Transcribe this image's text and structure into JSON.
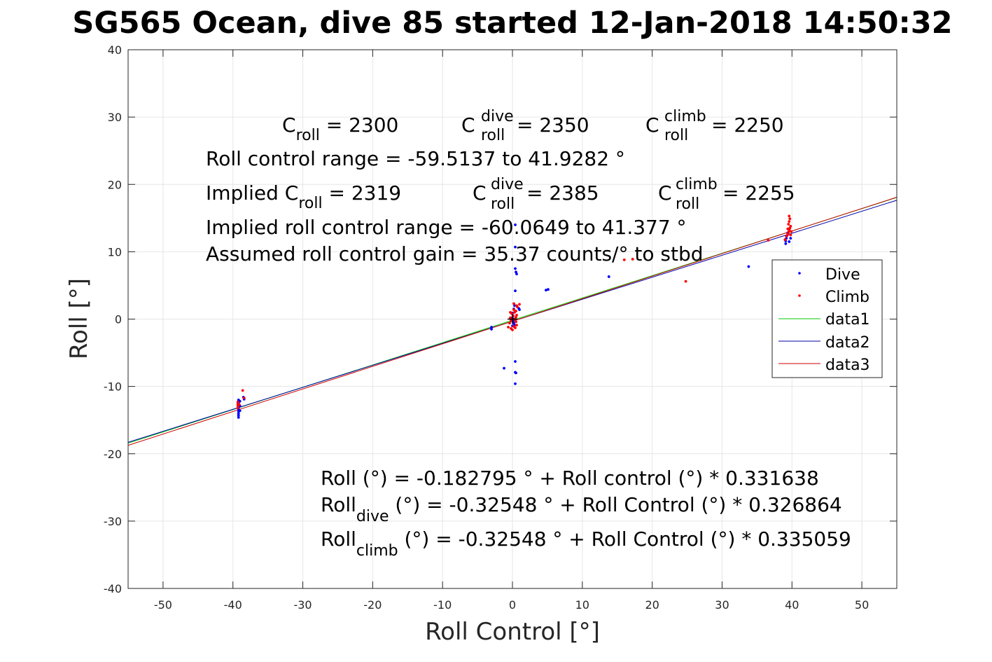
{
  "title": "SG565 Ocean, dive 85 started 12-Jan-2018 14:50:32",
  "xlabel": "Roll Control [°]",
  "ylabel": "Roll [°]",
  "annotations": {
    "c_roll": {
      "base": "C",
      "sub": "roll",
      "value": " = 2300"
    },
    "c_roll_dive": {
      "base": "C",
      "sup": "dive",
      "sub": "roll",
      "value": " = 2350"
    },
    "c_roll_climb": {
      "base": "C",
      "sup": "climb",
      "sub": "roll",
      "value": " = 2250"
    },
    "range_text": "Roll control range = -59.5137 to 41.9282 °",
    "implied_c_roll": {
      "prefix": "Implied C",
      "sub": "roll",
      "value": " = 2319"
    },
    "implied_c_roll_dive": {
      "base": "C",
      "sup": "dive",
      "sub": "roll",
      "value": " = 2385"
    },
    "implied_c_roll_climb": {
      "base": "C",
      "sup": "climb",
      "sub": "roll",
      "value": " = 2255"
    },
    "implied_range_text": "Implied roll control range = -60.0649 to 41.377 °",
    "gain_text": "Assumed roll control gain = 35.37 counts/° to stbd",
    "fit_all": "Roll (°) = -0.182795 ° + Roll control (°) * 0.331638",
    "fit_dive": {
      "base": "Roll",
      "sub": "dive",
      "rest": " (°) = -0.32548 ° + Roll Control (°) * 0.326864"
    },
    "fit_climb": {
      "base": "Roll",
      "sub": "climb",
      "rest": " (°) = -0.32548 ° + Roll Control (°) * 0.335059"
    }
  },
  "chart_data": {
    "type": "scatter",
    "xlim": [
      -55,
      55
    ],
    "ylim": [
      -40,
      40
    ],
    "xticks": [
      -50,
      -40,
      -30,
      -20,
      -10,
      0,
      10,
      20,
      30,
      40,
      50
    ],
    "yticks": [
      -40,
      -30,
      -20,
      -10,
      0,
      10,
      20,
      30,
      40
    ],
    "grid": true,
    "legend_position": "right",
    "series": [
      {
        "name": "Dive",
        "kind": "points",
        "color": "#0000ff",
        "points": [
          [
            -39.2,
            -12.0
          ],
          [
            -39.2,
            -12.4
          ],
          [
            -39.2,
            -12.8
          ],
          [
            -39.2,
            -13.1
          ],
          [
            -39.2,
            -13.4
          ],
          [
            -39.2,
            -13.7
          ],
          [
            -39.2,
            -14.0
          ],
          [
            -39.2,
            -14.3
          ],
          [
            -39.2,
            -14.6
          ],
          [
            -39.0,
            -12.2
          ],
          [
            -39.0,
            -12.9
          ],
          [
            -39.0,
            -13.6
          ],
          [
            -38.5,
            -11.6
          ],
          [
            -38.4,
            -11.9
          ],
          [
            -3.0,
            -1.2
          ],
          [
            -3.0,
            -1.5
          ],
          [
            -1.2,
            -7.3
          ],
          [
            0.4,
            14.0
          ],
          [
            0.4,
            10.7
          ],
          [
            0.4,
            7.5
          ],
          [
            0.5,
            7.0
          ],
          [
            0.6,
            6.7
          ],
          [
            0.4,
            4.2
          ],
          [
            0.3,
            2.0
          ],
          [
            0.2,
            1.5
          ],
          [
            0.0,
            0.9
          ],
          [
            0.1,
            0.5
          ],
          [
            0.0,
            0.2
          ],
          [
            -0.2,
            0.0
          ],
          [
            0.1,
            -0.3
          ],
          [
            0.2,
            -0.6
          ],
          [
            0.0,
            -1.0
          ],
          [
            0.3,
            -0.9
          ],
          [
            0.4,
            -6.3
          ],
          [
            0.4,
            -7.9
          ],
          [
            0.5,
            -8.0
          ],
          [
            0.4,
            -9.6
          ],
          [
            0.9,
            1.6
          ],
          [
            1.0,
            1.4
          ],
          [
            4.8,
            4.3
          ],
          [
            5.1,
            4.4
          ],
          [
            13.8,
            6.3
          ],
          [
            33.8,
            7.8
          ],
          [
            39.1,
            11.2
          ],
          [
            39.1,
            11.6
          ],
          [
            39.2,
            12.0
          ],
          [
            39.3,
            12.4
          ],
          [
            39.4,
            12.8
          ],
          [
            39.6,
            11.5
          ],
          [
            39.8,
            12.0
          ]
        ]
      },
      {
        "name": "Climb",
        "kind": "points",
        "color": "#ff0000",
        "points": [
          [
            -39.3,
            -12.3
          ],
          [
            -39.3,
            -12.6
          ],
          [
            -39.3,
            -12.9
          ],
          [
            -39.3,
            -13.2
          ],
          [
            -39.1,
            -12.7
          ],
          [
            -38.6,
            -10.6
          ],
          [
            -38.4,
            -11.7
          ],
          [
            -0.6,
            -1.2
          ],
          [
            -0.2,
            -1.4
          ],
          [
            0.0,
            -1.6
          ],
          [
            0.2,
            -1.1
          ],
          [
            0.4,
            -1.3
          ],
          [
            0.6,
            -0.9
          ],
          [
            -0.4,
            -0.6
          ],
          [
            0.5,
            -0.4
          ],
          [
            -0.2,
            -0.2
          ],
          [
            0.3,
            0.0
          ],
          [
            -0.3,
            0.2
          ],
          [
            0.5,
            0.3
          ],
          [
            0.1,
            0.5
          ],
          [
            0.6,
            0.6
          ],
          [
            -0.1,
            0.8
          ],
          [
            0.3,
            1.0
          ],
          [
            0.5,
            1.2
          ],
          [
            0.2,
            1.4
          ],
          [
            -0.3,
            1.0
          ],
          [
            0.7,
            1.8
          ],
          [
            0.6,
            2.0
          ],
          [
            0.2,
            2.3
          ],
          [
            1.0,
            2.2
          ],
          [
            16.0,
            8.8
          ],
          [
            17.2,
            8.9
          ],
          [
            24.8,
            5.6
          ],
          [
            36.6,
            11.7
          ],
          [
            39.0,
            11.8
          ],
          [
            39.2,
            12.3
          ],
          [
            39.4,
            12.6
          ],
          [
            39.5,
            12.9
          ],
          [
            39.6,
            13.2
          ],
          [
            39.7,
            13.5
          ],
          [
            39.8,
            13.8
          ],
          [
            39.5,
            14.1
          ],
          [
            39.6,
            14.5
          ],
          [
            39.7,
            14.9
          ],
          [
            39.6,
            15.3
          ],
          [
            39.9,
            13.0
          ],
          [
            39.8,
            12.5
          ],
          [
            39.4,
            13.4
          ]
        ]
      },
      {
        "name": "data1",
        "kind": "line",
        "color": "#00cc00",
        "x": [
          -55,
          55
        ],
        "y": [
          -18.42,
          18.06
        ]
      },
      {
        "name": "data2",
        "kind": "line",
        "color": "#0000aa",
        "x": [
          -55,
          55
        ],
        "y": [
          -18.3,
          17.65
        ]
      },
      {
        "name": "data3",
        "kind": "line",
        "color": "#cc0000",
        "x": [
          -55,
          55
        ],
        "y": [
          -18.75,
          18.1
        ]
      }
    ],
    "black_marker": {
      "x": 0.0,
      "y": 0.0
    }
  }
}
